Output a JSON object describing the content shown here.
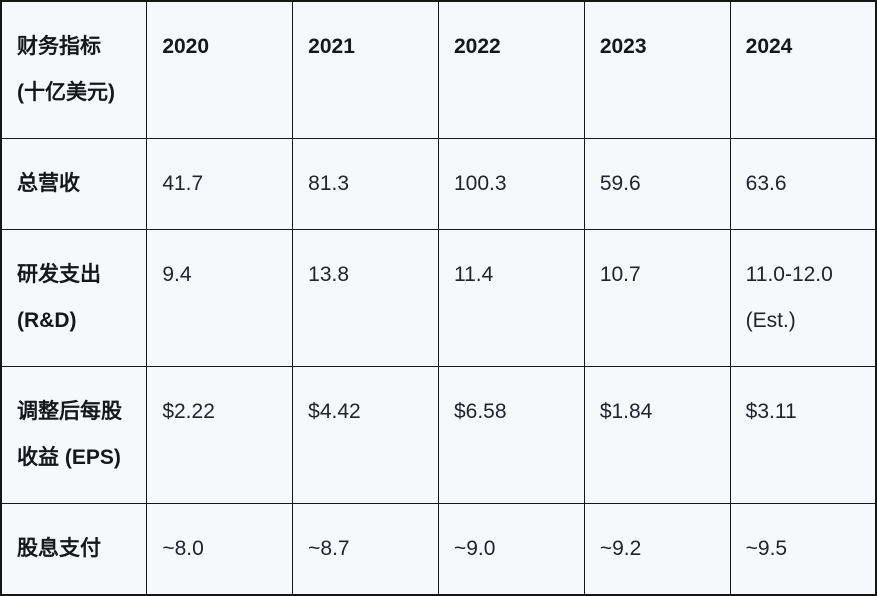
{
  "page": {
    "background_color": "#f7f8fc",
    "border_color": "#161616",
    "text_color": "#20242c"
  },
  "table": {
    "header": {
      "metric_label": "财务指标 (十亿美元)",
      "years": [
        "2020",
        "2021",
        "2022",
        "2023",
        "2024"
      ]
    },
    "rows": [
      {
        "label": "总营收",
        "values": [
          "41.7",
          "81.3",
          "100.3",
          "59.6",
          "63.6"
        ]
      },
      {
        "label": "研发支出 (R&D)",
        "values": [
          "9.4",
          "13.8",
          "11.4",
          "10.7",
          "11.0-12.0 (Est.)"
        ]
      },
      {
        "label": "调整后每股收益 (EPS)",
        "values": [
          "$2.22",
          "$4.42",
          "$6.58",
          "$1.84",
          "$3.11"
        ]
      },
      {
        "label": "股息支付",
        "values": [
          "~8.0",
          "~8.7",
          "~9.0",
          "~9.2",
          "~9.5"
        ]
      }
    ]
  },
  "chart_data": {
    "type": "table",
    "title": "财务指标 (十亿美元)",
    "categories": [
      "2020",
      "2021",
      "2022",
      "2023",
      "2024"
    ],
    "series": [
      {
        "name": "总营收",
        "values": [
          41.7,
          81.3,
          100.3,
          59.6,
          63.6
        ]
      },
      {
        "name": "研发支出 (R&D)",
        "values": [
          9.4,
          13.8,
          11.4,
          10.7,
          "11.0-12.0 (Est.)"
        ]
      },
      {
        "name": "调整后每股收益 (EPS)",
        "values": [
          "$2.22",
          "$4.42",
          "$6.58",
          "$1.84",
          "$3.11"
        ]
      },
      {
        "name": "股息支付",
        "values": [
          "~8.0",
          "~8.7",
          "~9.0",
          "~9.2",
          "~9.5"
        ]
      }
    ],
    "layout": {
      "grid": true,
      "header_row_bold": true,
      "label_column_bold": true
    }
  }
}
